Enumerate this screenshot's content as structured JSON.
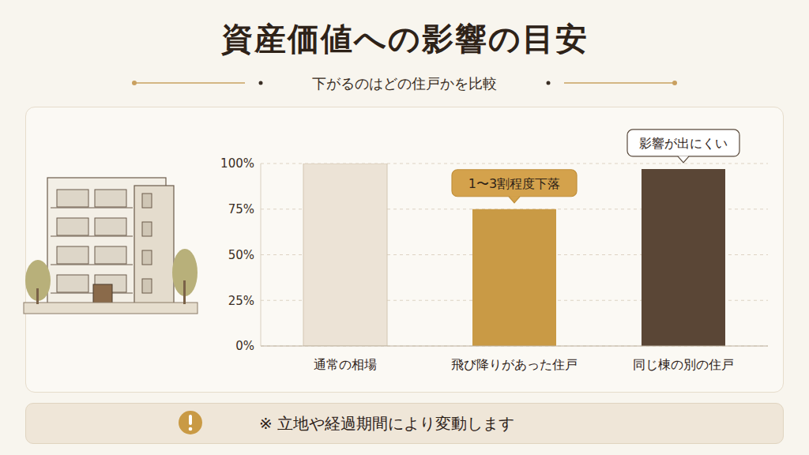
{
  "chart_data": {
    "type": "bar",
    "title": "資産価値への影響の目安",
    "subtitle": "下がるのはどの住戸かを比較",
    "note": "※ 立地や経過期間により変動します",
    "categories": [
      "通常の相場",
      "飛び降りがあった住戸",
      "同じ棟の別の住戸"
    ],
    "values": [
      100,
      75,
      97
    ],
    "colors": [
      "#ece3d6",
      "#c99a45",
      "#5a4636"
    ],
    "ylim": [
      0,
      100
    ],
    "yticks": [
      {
        "value": 0,
        "label": "0%"
      },
      {
        "value": 25,
        "label": "25%"
      },
      {
        "value": 50,
        "label": "50%"
      },
      {
        "value": 75,
        "label": "75%"
      },
      {
        "value": 100,
        "label": "100%"
      }
    ],
    "grid": true,
    "annotations": [
      {
        "category": "飛び降りがあった住戸",
        "text": "1〜3割程度下落"
      },
      {
        "category": "同じ棟の別の住戸",
        "text": "影響が出にくい"
      }
    ]
  }
}
